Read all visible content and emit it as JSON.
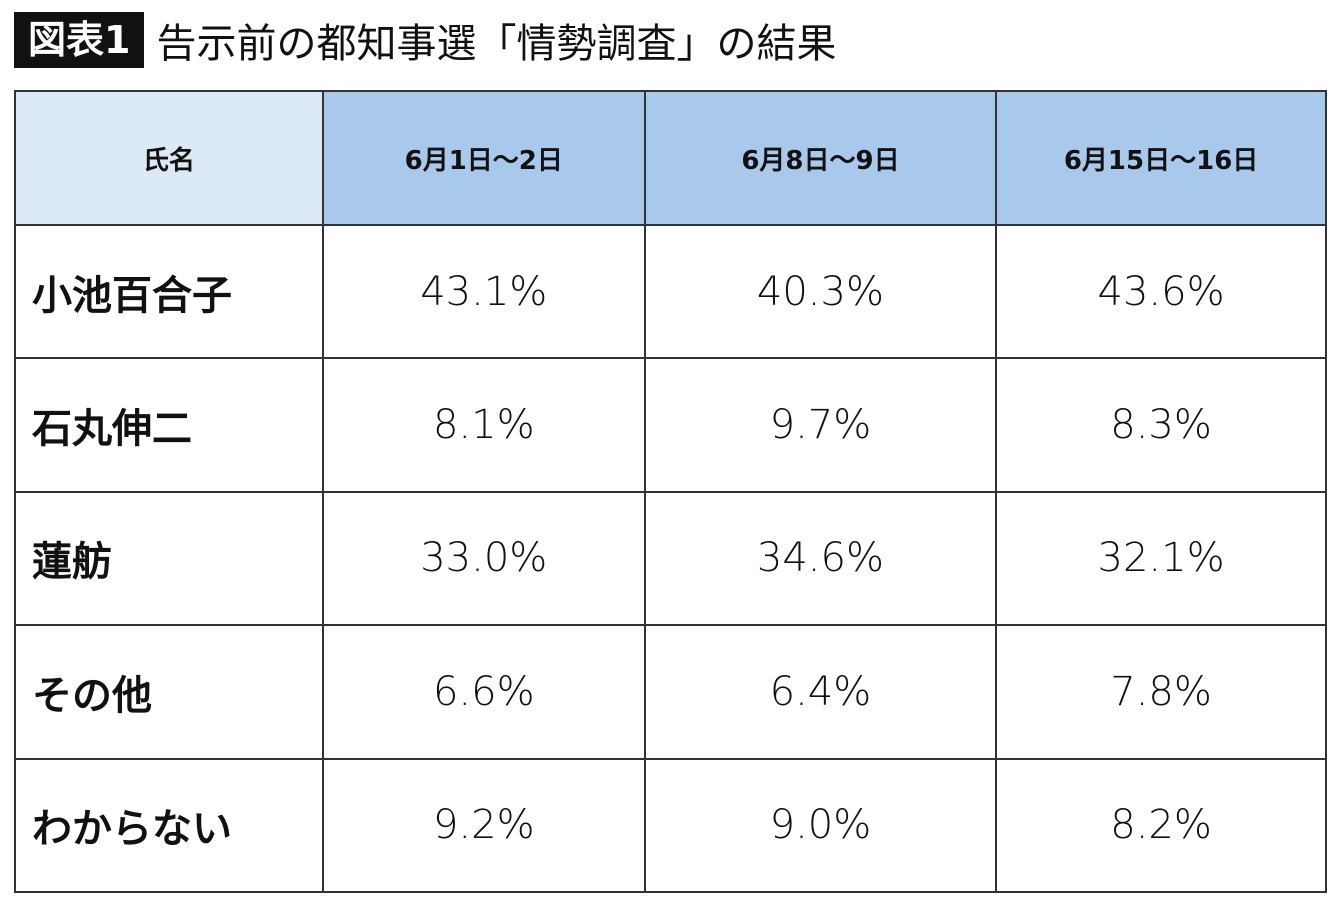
{
  "header": {
    "badge": "図表1",
    "title": "告示前の都知事選「情勢調査」の結果"
  },
  "table": {
    "columns": [
      "氏名",
      "6月1日～2日",
      "6月8日～9日",
      "6月15日～16日"
    ],
    "rows": [
      [
        "小池百合子",
        "43.1%",
        "40.3%",
        "43.6%"
      ],
      [
        "石丸伸二",
        "8.1%",
        "9.7%",
        "8.3%"
      ],
      [
        "蓮舫",
        "33.0%",
        "34.6%",
        "32.1%"
      ],
      [
        "その他",
        "6.6%",
        "6.4%",
        "7.8%"
      ],
      [
        "わからない",
        "9.2%",
        "9.0%",
        "8.2%"
      ]
    ]
  }
}
